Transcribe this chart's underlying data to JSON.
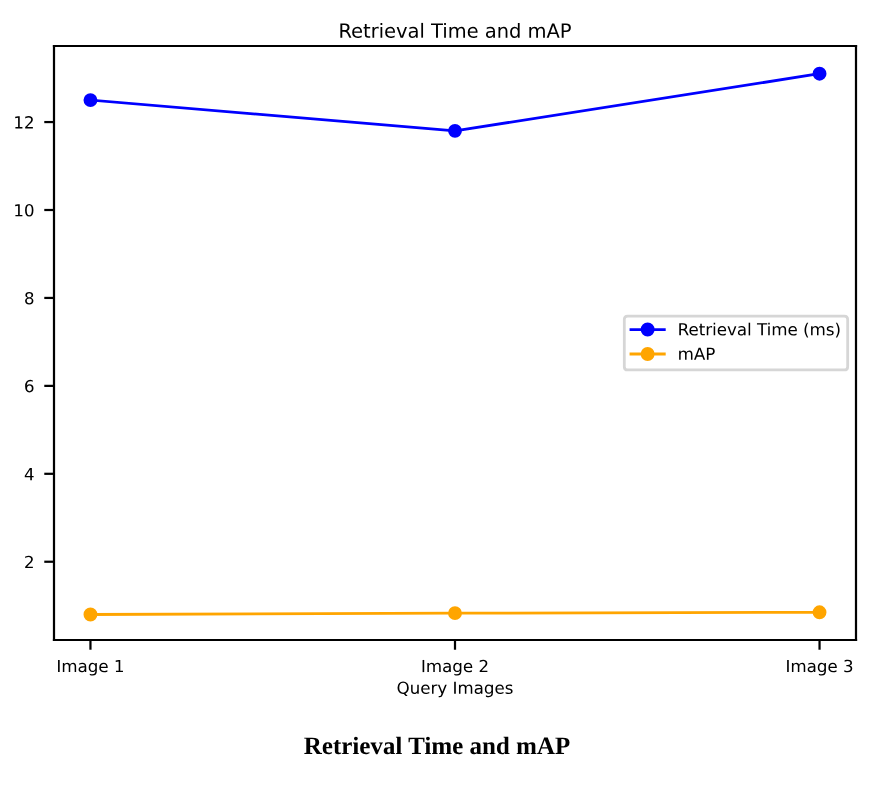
{
  "chart_data": {
    "type": "line",
    "title": "Retrieval Time and mAP",
    "xlabel": "Query Images",
    "categories": [
      "Image 1",
      "Image 2",
      "Image 3"
    ],
    "series": [
      {
        "name": "Retrieval Time (ms)",
        "color": "#0000ff",
        "values": [
          12.5,
          11.8,
          13.1
        ]
      },
      {
        "name": "mAP",
        "color": "#ffa500",
        "values": [
          0.8,
          0.83,
          0.85
        ]
      }
    ],
    "ylim": [
      0.22,
      13.73
    ],
    "yticks": [
      2,
      4,
      6,
      8,
      10,
      12
    ],
    "marker": "circle",
    "legend": "right",
    "grid": false,
    "annotations": [
      "Retrieval Time and mAP"
    ]
  }
}
